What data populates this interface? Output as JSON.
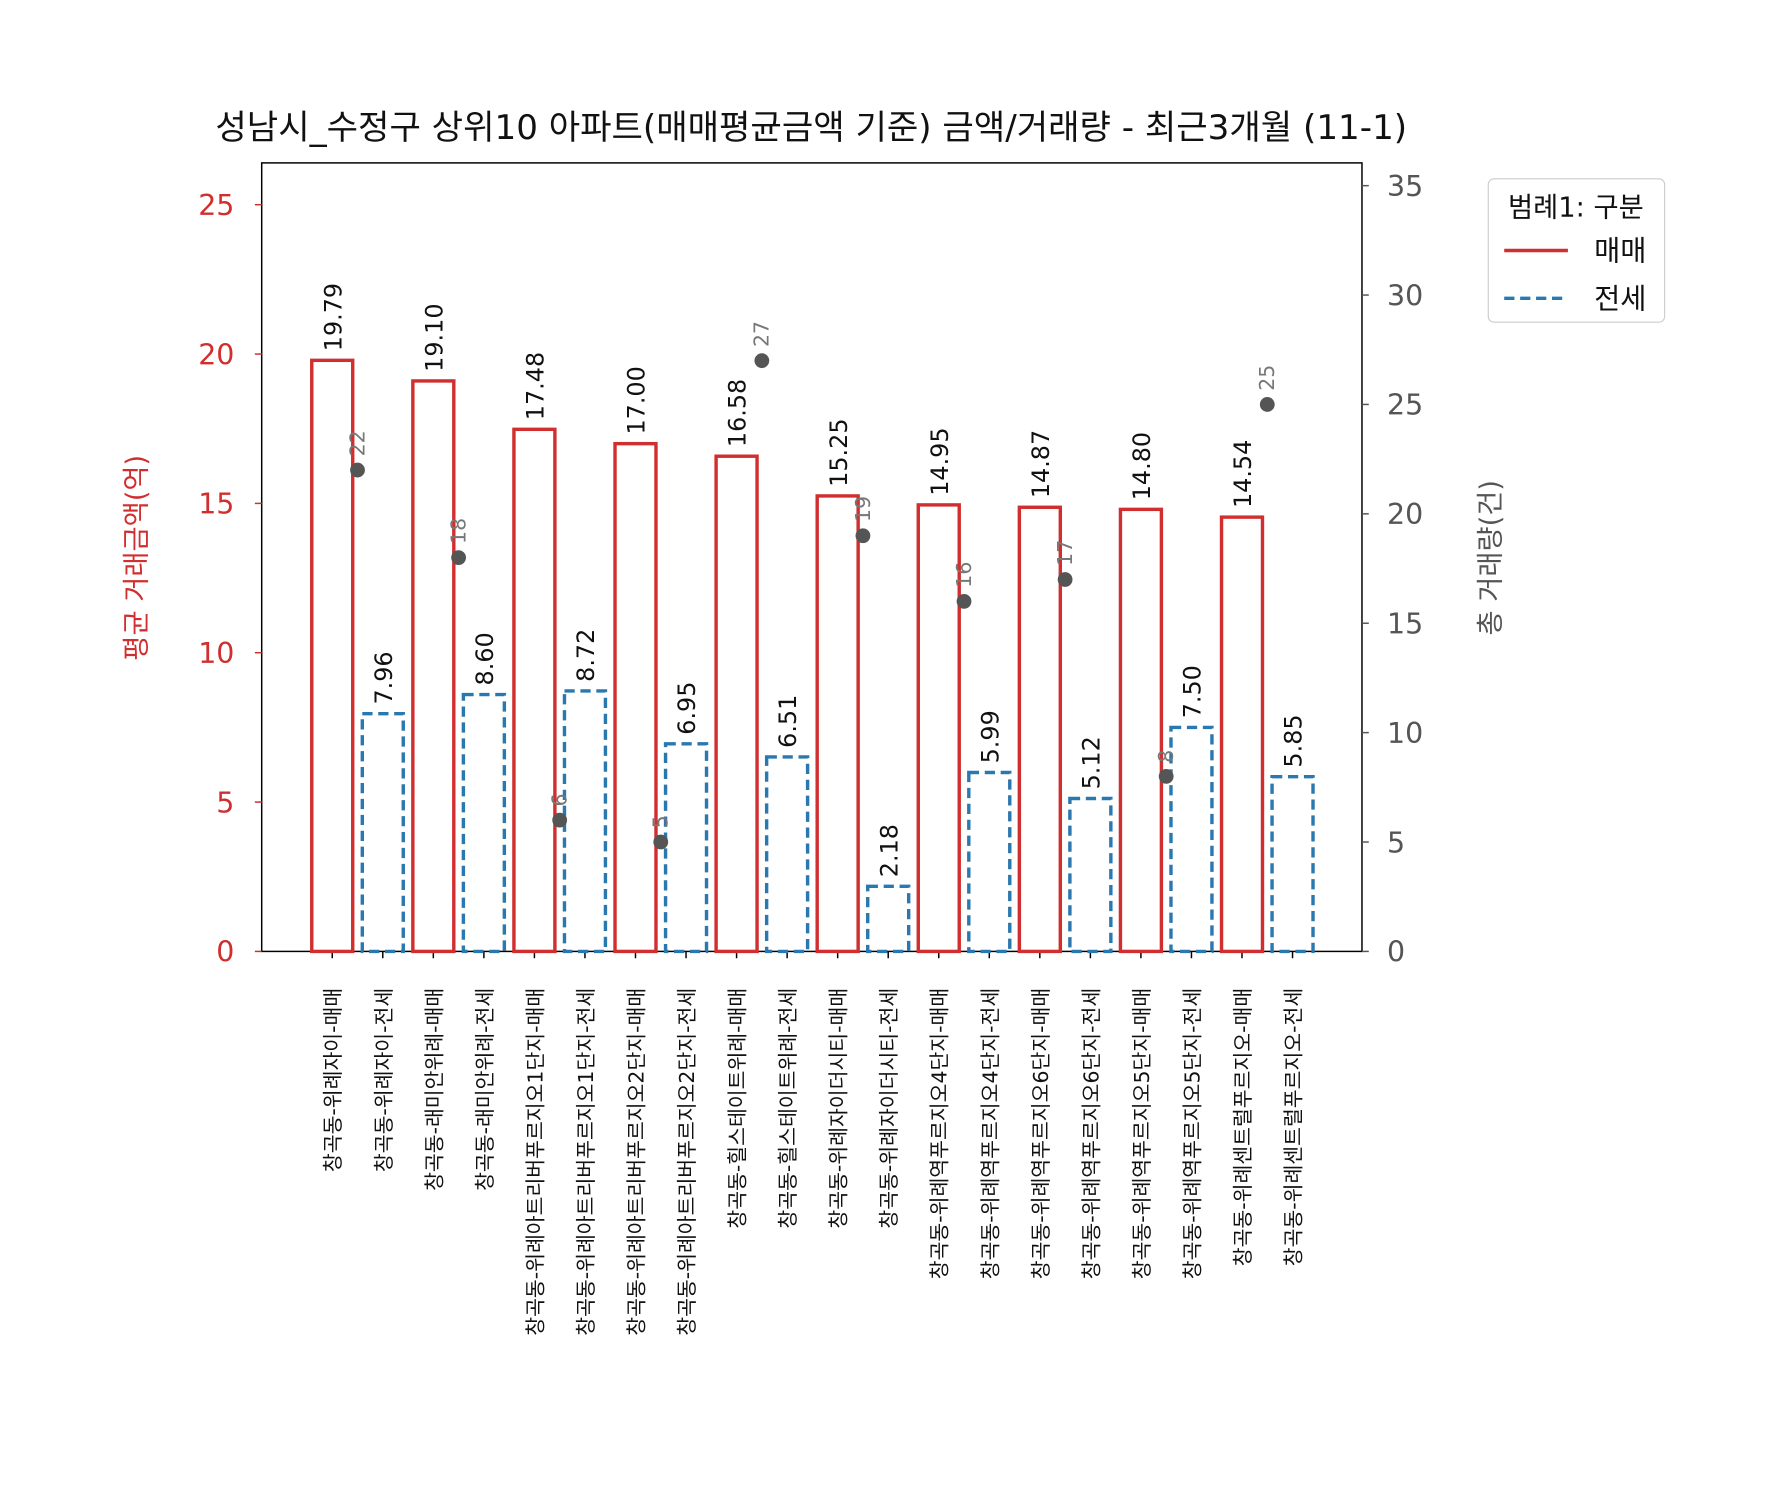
{
  "chart_data": {
    "type": "bar",
    "title": "성남시_수정구 상위10 아파트(매매평균금액 기준) 금액/거래량 - 최근3개월 (11-1)",
    "ylabel": "평균 거래금액(억)",
    "y2label": "총 거래량(건)",
    "categories": [
      "창곡동-위례자이-매매",
      "창곡동-위례자이-전세",
      "창곡동-래미안위례-매매",
      "창곡동-래미안위례-전세",
      "창곡동-위례아트리버푸르지오1단지-매매",
      "창곡동-위례아트리버푸르지오1단지-전세",
      "창곡동-위례아트리버푸르지오2단지-매매",
      "창곡동-위례아트리버푸르지오2단지-전세",
      "창곡동-힐스테이트위례-매매",
      "창곡동-힐스테이트위례-전세",
      "창곡동-위례자이더시티-매매",
      "창곡동-위례자이더시티-전세",
      "창곡동-위례역푸르지오4단지-매매",
      "창곡동-위례역푸르지오4단지-전세",
      "창곡동-위례역푸르지오6단지-매매",
      "창곡동-위례역푸르지오6단지-전세",
      "창곡동-위례역푸르지오5단지-매매",
      "창곡동-위례역푸르지오5단지-전세",
      "창곡동-위례센트럴푸르지오-매매",
      "창곡동-위례센트럴푸르지오-전세"
    ],
    "series": [
      {
        "name": "매매",
        "color": "#d12f2f",
        "linestyle": "solid",
        "values": [
          19.79,
          null,
          19.1,
          null,
          17.48,
          null,
          17.0,
          null,
          16.58,
          null,
          15.25,
          null,
          14.95,
          null,
          14.87,
          null,
          14.8,
          null,
          14.54,
          null
        ],
        "value_labels": [
          "19.79",
          null,
          "19.10",
          null,
          "17.48",
          null,
          "17.00",
          null,
          "16.58",
          null,
          "15.25",
          null,
          "14.95",
          null,
          "14.87",
          null,
          "14.80",
          null,
          "14.54",
          null
        ]
      },
      {
        "name": "전세",
        "color": "#2a78b0",
        "linestyle": "dashed",
        "values": [
          null,
          7.96,
          null,
          8.6,
          null,
          8.72,
          null,
          6.95,
          null,
          6.51,
          null,
          2.18,
          null,
          5.99,
          null,
          5.12,
          null,
          7.5,
          null,
          5.85
        ],
        "value_labels": [
          null,
          "7.96",
          null,
          "8.60",
          null,
          "8.72",
          null,
          "6.95",
          null,
          "6.51",
          null,
          "2.18",
          null,
          "5.99",
          null,
          "5.12",
          null,
          "7.50",
          null,
          "5.85"
        ]
      },
      {
        "type": "scatter",
        "axis": "y2",
        "color": "#555555",
        "values": [
          22,
          null,
          18,
          null,
          6,
          null,
          5,
          null,
          27,
          null,
          19,
          null,
          16,
          null,
          17,
          null,
          8,
          null,
          25,
          null
        ]
      }
    ],
    "ylim": [
      0,
      26.4
    ],
    "yticks": [
      0,
      5,
      10,
      15,
      20,
      25
    ],
    "ylabel_color": "#d12f2f",
    "y2lim": [
      0,
      36.04
    ],
    "y2ticks": [
      0,
      5,
      10,
      15,
      20,
      25,
      30,
      35
    ],
    "y2label_color": "#555555",
    "legend_title": "범례1: 구분",
    "legend": "outside-right"
  }
}
